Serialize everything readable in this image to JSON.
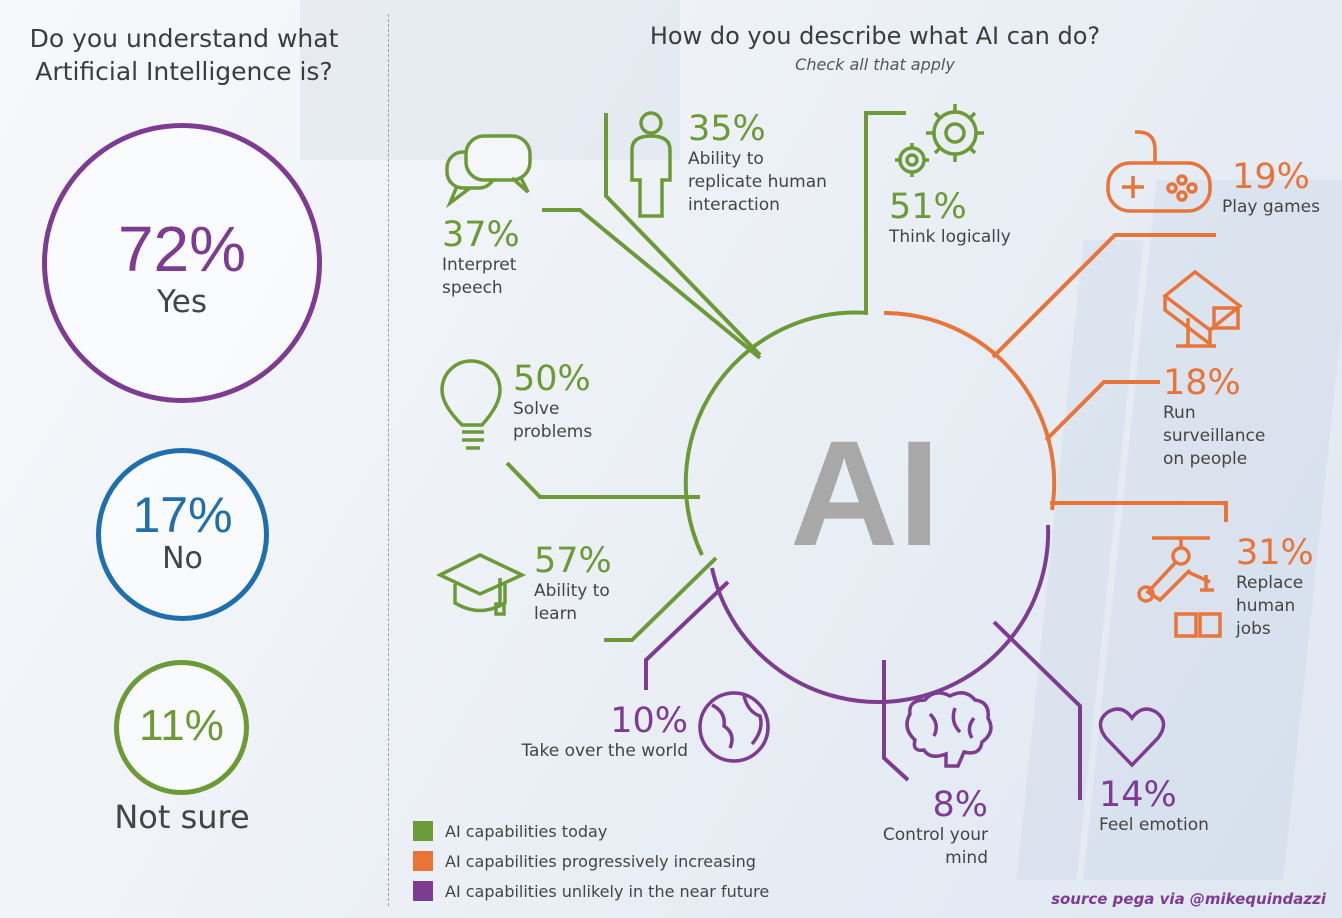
{
  "left": {
    "title_line1": "Do you understand what",
    "title_line2": "Artificial Intelligence is?",
    "answers": [
      {
        "pct": "72%",
        "label": "Yes",
        "color": "#7d3c92"
      },
      {
        "pct": "17%",
        "label": "No",
        "color": "#1f6fae"
      },
      {
        "pct": "11%",
        "label": "Not sure",
        "color": "#6b9a37"
      }
    ]
  },
  "right": {
    "title": "How do you describe what AI can do?",
    "subtitle": "Check all that apply",
    "center_label": "AI"
  },
  "capabilities": {
    "c1": {
      "pct": "35%",
      "l1": "Ability to",
      "l2": "replicate human",
      "l3": "interaction",
      "group": "today",
      "icon": "person-icon"
    },
    "c2": {
      "pct": "37%",
      "l1": "Interpret",
      "l2": "speech",
      "group": "today",
      "icon": "speech-bubbles-icon"
    },
    "c3": {
      "pct": "51%",
      "l1": "Think logically",
      "group": "today",
      "icon": "gears-icon"
    },
    "c4": {
      "pct": "50%",
      "l1": "Solve",
      "l2": "problems",
      "group": "today",
      "icon": "lightbulb-icon"
    },
    "c5": {
      "pct": "57%",
      "l1": "Ability to",
      "l2": "learn",
      "group": "today",
      "icon": "graduation-cap-icon"
    },
    "c6": {
      "pct": "19%",
      "l1": "Play games",
      "group": "increasing",
      "icon": "gamepad-icon"
    },
    "c7": {
      "pct": "18%",
      "l1": "Run",
      "l2": "surveillance",
      "l3": "on people",
      "group": "increasing",
      "icon": "security-camera-icon"
    },
    "c8": {
      "pct": "31%",
      "l1": "Replace",
      "l2": "human",
      "l3": "jobs",
      "group": "increasing",
      "icon": "robot-arm-icon"
    },
    "c9": {
      "pct": "10%",
      "l1": "Take over the world",
      "group": "unlikely",
      "icon": "globe-icon"
    },
    "c10": {
      "pct": "8%",
      "l1": "Control your",
      "l2": "mind",
      "group": "unlikely",
      "icon": "brain-icon"
    },
    "c11": {
      "pct": "14%",
      "l1": "Feel emotion",
      "group": "unlikely",
      "icon": "heart-icon"
    }
  },
  "legend": [
    {
      "label": "AI capabilities today",
      "color": "#6b9a37"
    },
    {
      "label": "AI capabilities progressively increasing",
      "color": "#e8743a"
    },
    {
      "label": "AI capabilities unlikely in the near future",
      "color": "#7d3c92"
    }
  ],
  "source": "source pega via @mikequindazzi",
  "chart_data": [
    {
      "type": "pie",
      "title": "Do you understand what Artificial Intelligence is?",
      "categories": [
        "Yes",
        "No",
        "Not sure"
      ],
      "values": [
        72,
        17,
        11
      ],
      "unit": "%"
    },
    {
      "type": "bar",
      "title": "How do you describe what AI can do?",
      "subtitle": "Check all that apply",
      "categories": [
        "Ability to replicate human interaction",
        "Interpret speech",
        "Think logically",
        "Solve problems",
        "Ability to learn",
        "Play games",
        "Run surveillance on people",
        "Replace human jobs",
        "Take over the world",
        "Control your mind",
        "Feel emotion"
      ],
      "values": [
        35,
        37,
        51,
        50,
        57,
        19,
        18,
        31,
        10,
        8,
        14
      ],
      "groups": [
        "AI capabilities today",
        "AI capabilities today",
        "AI capabilities today",
        "AI capabilities today",
        "AI capabilities today",
        "AI capabilities progressively increasing",
        "AI capabilities progressively increasing",
        "AI capabilities progressively increasing",
        "AI capabilities unlikely in the near future",
        "AI capabilities unlikely in the near future",
        "AI capabilities unlikely in the near future"
      ],
      "unit": "%"
    }
  ]
}
